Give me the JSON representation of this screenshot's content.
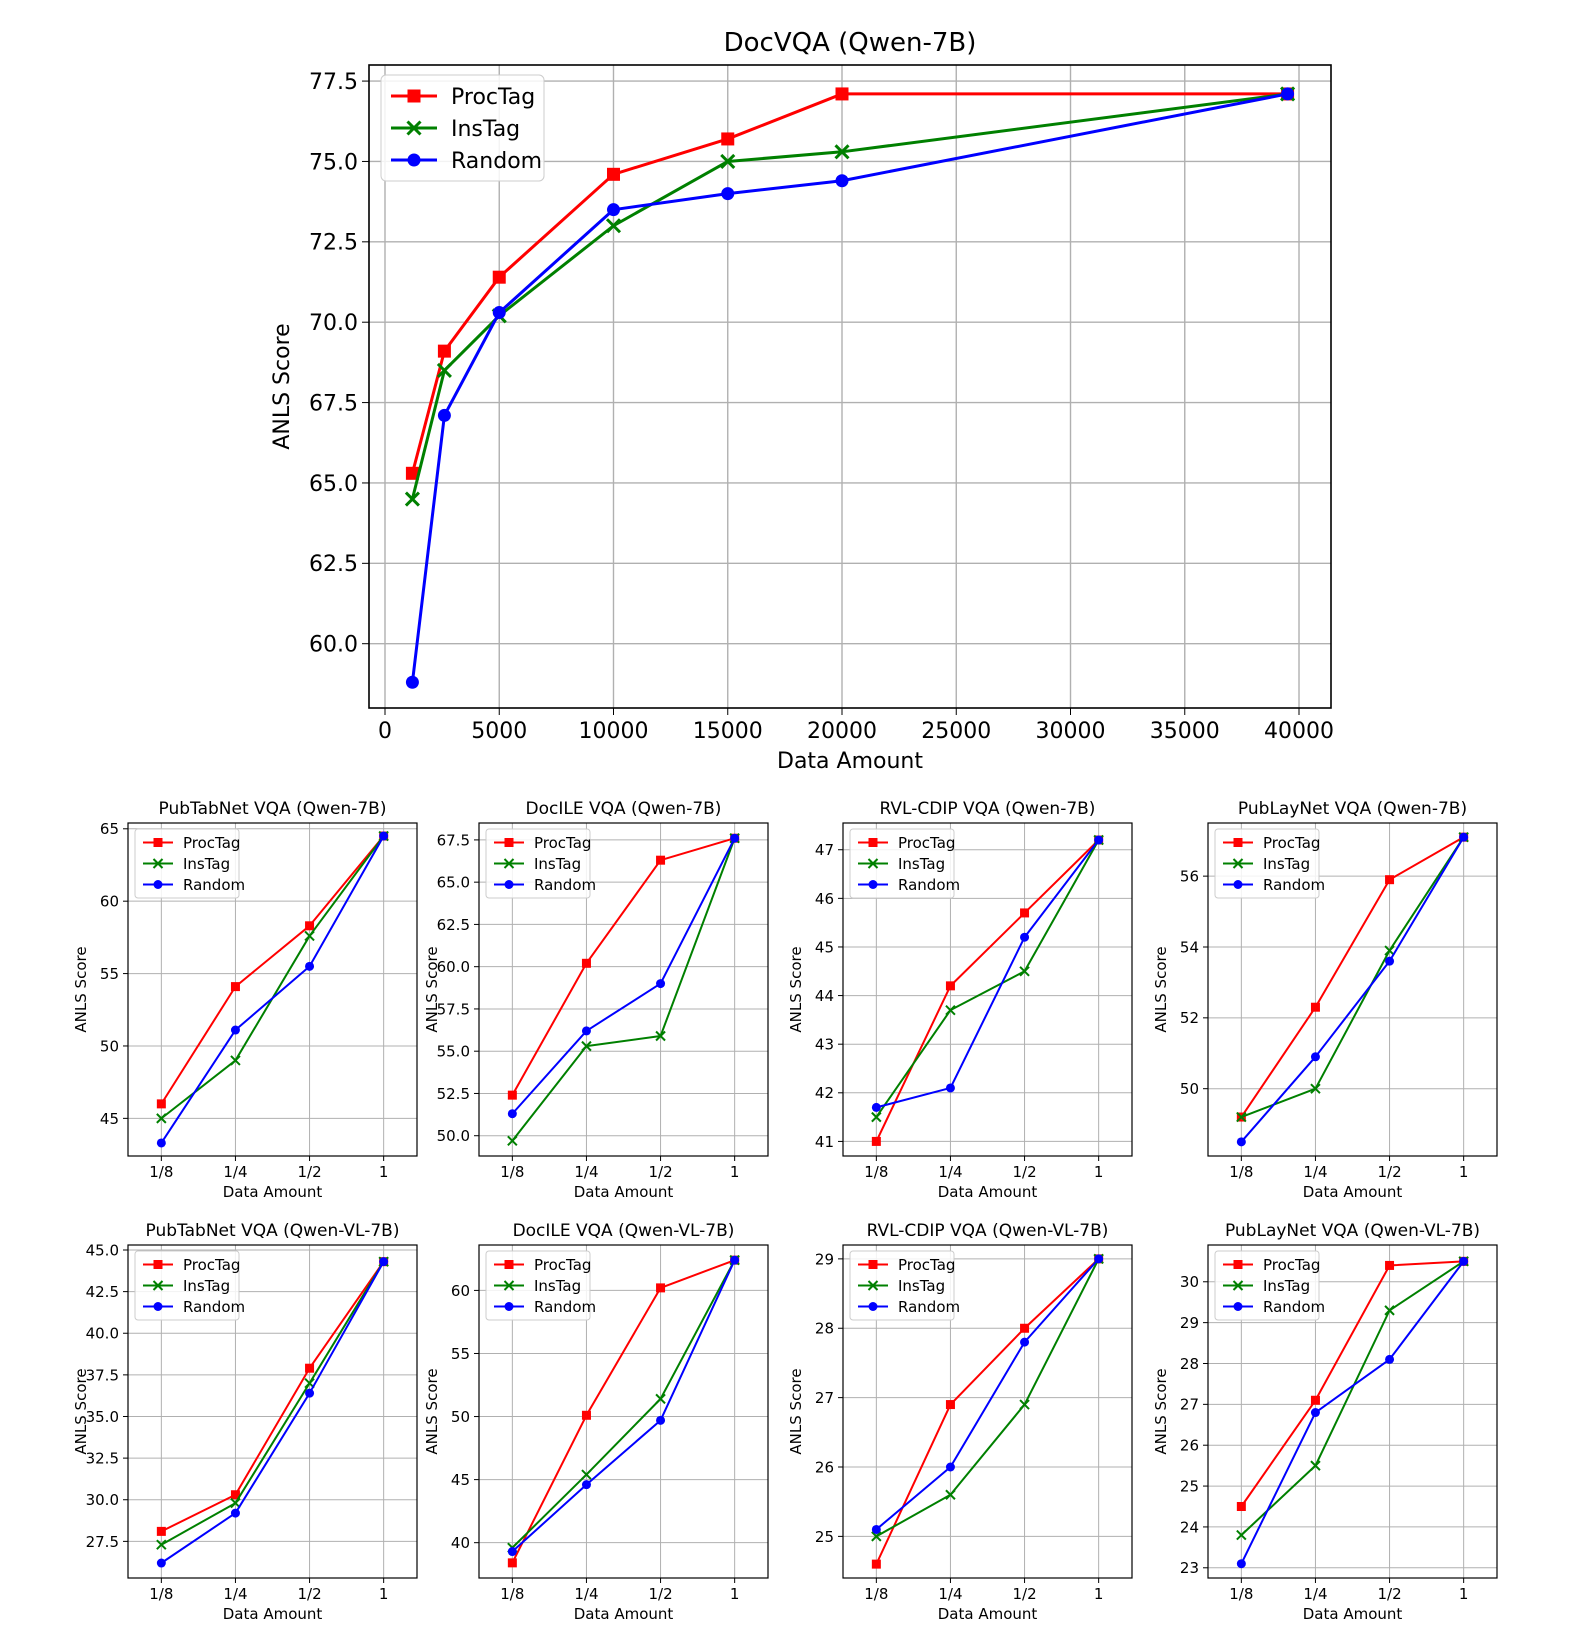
{
  "chart_data": [
    {
      "type": "line",
      "title": "DocVQA (Qwen-7B)",
      "xlabel": "Data Amount",
      "ylabel": "ANLS Score",
      "x_scale": "linear",
      "xlim": [
        -700,
        41400
      ],
      "ylim": [
        58.0,
        78.0
      ],
      "xticks": [
        0,
        5000,
        10000,
        15000,
        20000,
        25000,
        30000,
        35000,
        40000
      ],
      "yticks": [
        60.0,
        62.5,
        65.0,
        67.5,
        70.0,
        72.5,
        75.0,
        77.5
      ],
      "ytick_labels": [
        "60.0",
        "62.5",
        "65.0",
        "67.5",
        "70.0",
        "72.5",
        "75.0",
        "77.5"
      ],
      "x": [
        1200,
        2600,
        5000,
        10000,
        15000,
        20000,
        39500
      ],
      "legend_position": "top-left",
      "series": [
        {
          "name": "ProcTag",
          "color": "#ff0000",
          "marker": "square",
          "values": [
            65.3,
            69.1,
            71.4,
            74.6,
            75.7,
            77.1,
            77.1
          ]
        },
        {
          "name": "InsTag",
          "color": "#008000",
          "marker": "x",
          "values": [
            64.5,
            68.5,
            70.2,
            73.0,
            75.0,
            75.3,
            77.1
          ]
        },
        {
          "name": "Random",
          "color": "#0000ff",
          "marker": "circle",
          "values": [
            58.8,
            67.1,
            70.3,
            73.5,
            74.0,
            74.4,
            77.1
          ]
        }
      ]
    },
    {
      "type": "line",
      "title": "PubTabNet VQA (Qwen-7B)",
      "xlabel": "Data Amount",
      "ylabel": "ANLS Score",
      "x_scale": "category",
      "categories": [
        "1/8",
        "1/4",
        "1/2",
        "1"
      ],
      "ylim": [
        42.4,
        65.4
      ],
      "yticks": [
        45,
        50,
        55,
        60,
        65
      ],
      "ytick_labels": [
        "45",
        "50",
        "55",
        "60",
        "65"
      ],
      "legend_position": "top-left",
      "series": [
        {
          "name": "ProcTag",
          "color": "#ff0000",
          "marker": "square",
          "values": [
            46.0,
            54.1,
            58.3,
            64.5
          ]
        },
        {
          "name": "InsTag",
          "color": "#008000",
          "marker": "x",
          "values": [
            45.0,
            49.0,
            57.6,
            64.5
          ]
        },
        {
          "name": "Random",
          "color": "#0000ff",
          "marker": "circle",
          "values": [
            43.3,
            51.1,
            55.5,
            64.5
          ]
        }
      ]
    },
    {
      "type": "line",
      "title": "DocILE VQA (Qwen-7B)",
      "xlabel": "Data Amount",
      "ylabel": "ANLS Score",
      "x_scale": "category",
      "categories": [
        "1/8",
        "1/4",
        "1/2",
        "1"
      ],
      "ylim": [
        48.8,
        68.5
      ],
      "yticks": [
        50.0,
        52.5,
        55.0,
        57.5,
        60.0,
        62.5,
        65.0,
        67.5
      ],
      "ytick_labels": [
        "50.0",
        "52.5",
        "55.0",
        "57.5",
        "60.0",
        "62.5",
        "65.0",
        "67.5"
      ],
      "legend_position": "top-left",
      "series": [
        {
          "name": "ProcTag",
          "color": "#ff0000",
          "marker": "square",
          "values": [
            52.4,
            60.2,
            66.3,
            67.6
          ]
        },
        {
          "name": "InsTag",
          "color": "#008000",
          "marker": "x",
          "values": [
            49.7,
            55.3,
            55.9,
            67.6
          ]
        },
        {
          "name": "Random",
          "color": "#0000ff",
          "marker": "circle",
          "values": [
            51.3,
            56.2,
            59.0,
            67.6
          ]
        }
      ]
    },
    {
      "type": "line",
      "title": "RVL-CDIP VQA (Qwen-7B)",
      "xlabel": "Data Amount",
      "ylabel": "ANLS Score",
      "x_scale": "category",
      "categories": [
        "1/8",
        "1/4",
        "1/2",
        "1"
      ],
      "ylim": [
        40.7,
        47.55
      ],
      "yticks": [
        41,
        42,
        43,
        44,
        45,
        46,
        47
      ],
      "ytick_labels": [
        "41",
        "42",
        "43",
        "44",
        "45",
        "46",
        "47"
      ],
      "legend_position": "top-left",
      "series": [
        {
          "name": "ProcTag",
          "color": "#ff0000",
          "marker": "square",
          "values": [
            41.0,
            44.2,
            45.7,
            47.2
          ]
        },
        {
          "name": "InsTag",
          "color": "#008000",
          "marker": "x",
          "values": [
            41.5,
            43.7,
            44.5,
            47.2
          ]
        },
        {
          "name": "Random",
          "color": "#0000ff",
          "marker": "circle",
          "values": [
            41.7,
            42.1,
            45.2,
            47.2
          ]
        }
      ]
    },
    {
      "type": "line",
      "title": "PubLayNet VQA (Qwen-7B)",
      "xlabel": "Data Amount",
      "ylabel": "ANLS Score",
      "x_scale": "category",
      "categories": [
        "1/8",
        "1/4",
        "1/2",
        "1"
      ],
      "ylim": [
        48.1,
        57.5
      ],
      "yticks": [
        50,
        52,
        54,
        56
      ],
      "ytick_labels": [
        "50",
        "52",
        "54",
        "56"
      ],
      "legend_position": "top-left",
      "series": [
        {
          "name": "ProcTag",
          "color": "#ff0000",
          "marker": "square",
          "values": [
            49.2,
            52.3,
            55.9,
            57.1
          ]
        },
        {
          "name": "InsTag",
          "color": "#008000",
          "marker": "x",
          "values": [
            49.2,
            50.0,
            53.9,
            57.1
          ]
        },
        {
          "name": "Random",
          "color": "#0000ff",
          "marker": "circle",
          "values": [
            48.5,
            50.9,
            53.6,
            57.1
          ]
        }
      ]
    },
    {
      "type": "line",
      "title": "PubTabNet VQA (Qwen-VL-7B)",
      "xlabel": "Data Amount",
      "ylabel": "ANLS Score",
      "x_scale": "category",
      "categories": [
        "1/8",
        "1/4",
        "1/2",
        "1"
      ],
      "ylim": [
        25.3,
        45.3
      ],
      "yticks": [
        27.5,
        30.0,
        32.5,
        35.0,
        37.5,
        40.0,
        42.5,
        45.0
      ],
      "ytick_labels": [
        "27.5",
        "30.0",
        "32.5",
        "35.0",
        "37.5",
        "40.0",
        "42.5",
        "45.0"
      ],
      "legend_position": "top-left",
      "series": [
        {
          "name": "ProcTag",
          "color": "#ff0000",
          "marker": "square",
          "values": [
            28.1,
            30.3,
            37.9,
            44.3
          ]
        },
        {
          "name": "InsTag",
          "color": "#008000",
          "marker": "x",
          "values": [
            27.3,
            29.8,
            37.0,
            44.3
          ]
        },
        {
          "name": "Random",
          "color": "#0000ff",
          "marker": "circle",
          "values": [
            26.2,
            29.2,
            36.4,
            44.3
          ]
        }
      ]
    },
    {
      "type": "line",
      "title": "DocILE VQA (Qwen-VL-7B)",
      "xlabel": "Data Amount",
      "ylabel": "ANLS Score",
      "x_scale": "category",
      "categories": [
        "1/8",
        "1/4",
        "1/2",
        "1"
      ],
      "ylim": [
        37.2,
        63.6
      ],
      "yticks": [
        40,
        45,
        50,
        55,
        60
      ],
      "ytick_labels": [
        "40",
        "45",
        "50",
        "55",
        "60"
      ],
      "legend_position": "top-left",
      "series": [
        {
          "name": "ProcTag",
          "color": "#ff0000",
          "marker": "square",
          "values": [
            38.4,
            50.1,
            60.2,
            62.4
          ]
        },
        {
          "name": "InsTag",
          "color": "#008000",
          "marker": "x",
          "values": [
            39.6,
            45.4,
            51.4,
            62.4
          ]
        },
        {
          "name": "Random",
          "color": "#0000ff",
          "marker": "circle",
          "values": [
            39.3,
            44.6,
            49.7,
            62.4
          ]
        }
      ]
    },
    {
      "type": "line",
      "title": "RVL-CDIP VQA (Qwen-VL-7B)",
      "xlabel": "Data Amount",
      "ylabel": "ANLS Score",
      "x_scale": "category",
      "categories": [
        "1/8",
        "1/4",
        "1/2",
        "1"
      ],
      "ylim": [
        24.4,
        29.2
      ],
      "yticks": [
        25,
        26,
        27,
        28,
        29
      ],
      "ytick_labels": [
        "25",
        "26",
        "27",
        "28",
        "29"
      ],
      "legend_position": "top-left",
      "series": [
        {
          "name": "ProcTag",
          "color": "#ff0000",
          "marker": "square",
          "values": [
            24.6,
            26.9,
            28.0,
            29.0
          ]
        },
        {
          "name": "InsTag",
          "color": "#008000",
          "marker": "x",
          "values": [
            25.0,
            25.6,
            26.9,
            29.0
          ]
        },
        {
          "name": "Random",
          "color": "#0000ff",
          "marker": "circle",
          "values": [
            25.1,
            26.0,
            27.8,
            29.0
          ]
        }
      ]
    },
    {
      "type": "line",
      "title": "PubLayNet VQA (Qwen-VL-7B)",
      "xlabel": "Data Amount",
      "ylabel": "ANLS Score",
      "x_scale": "category",
      "categories": [
        "1/8",
        "1/4",
        "1/2",
        "1"
      ],
      "ylim": [
        22.75,
        30.9
      ],
      "yticks": [
        23,
        24,
        25,
        26,
        27,
        28,
        29,
        30
      ],
      "ytick_labels": [
        "23",
        "24",
        "25",
        "26",
        "27",
        "28",
        "29",
        "30"
      ],
      "legend_position": "top-left",
      "series": [
        {
          "name": "ProcTag",
          "color": "#ff0000",
          "marker": "square",
          "values": [
            24.5,
            27.1,
            30.4,
            30.5
          ]
        },
        {
          "name": "InsTag",
          "color": "#008000",
          "marker": "x",
          "values": [
            23.8,
            25.5,
            29.3,
            30.5
          ]
        },
        {
          "name": "Random",
          "color": "#0000ff",
          "marker": "circle",
          "values": [
            23.1,
            26.8,
            28.1,
            30.5
          ]
        }
      ]
    }
  ]
}
